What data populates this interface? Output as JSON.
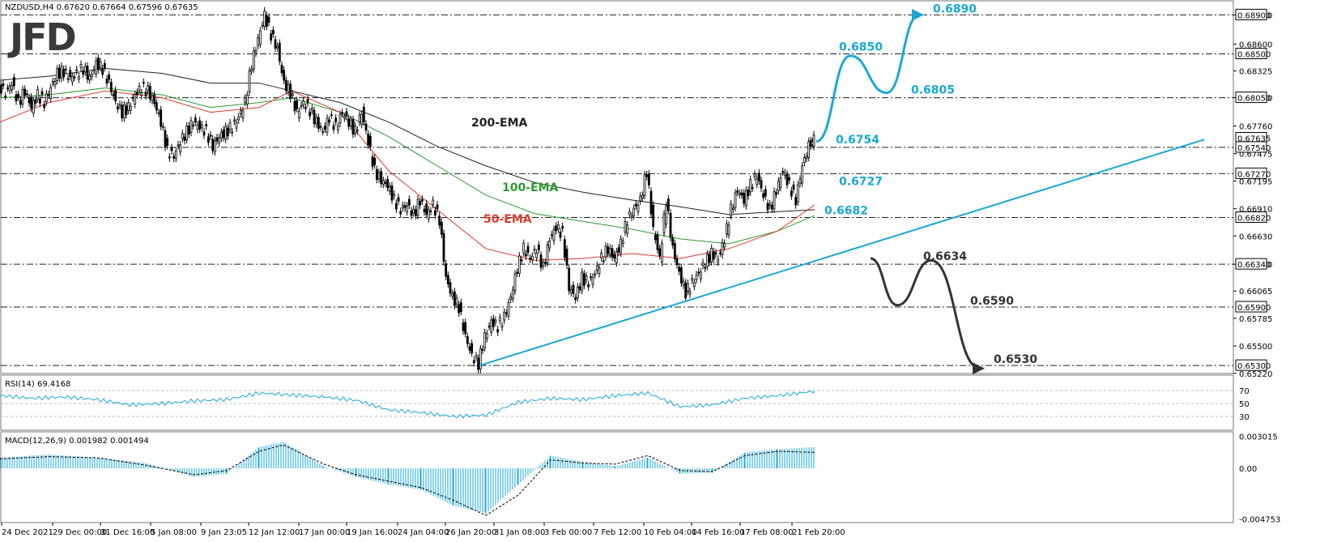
{
  "chart_data": {
    "type": "candlestick",
    "symbol_header": "NZDUSD,H4  0.67620 0.67664 0.67596 0.67635",
    "logo_text": "JFD",
    "price_axis": {
      "ylim": [
        0.6521,
        0.6897
      ],
      "ticks": [
        "0.68900",
        "0.68600",
        "0.68325",
        "0.68050",
        "0.67760",
        "0.67475",
        "0.67195",
        "0.66910",
        "0.66630",
        "0.66340",
        "0.66065",
        "0.65785",
        "0.65500",
        "0.65220"
      ],
      "highlight_ticks": [
        "0.68900",
        "0.68500",
        "0.68050",
        "0.67635",
        "0.67540",
        "0.67270",
        "0.66820",
        "0.66340",
        "0.65900",
        "0.65300"
      ]
    },
    "x_ticks": [
      "24 Dec 2021",
      "29 Dec 00:00",
      "31 Dec 16:00",
      "5 Jan 08:00",
      "9 Jan 23:05",
      "12 Jan 12:00",
      "17 Jan 00:00",
      "19 Jan 16:00",
      "24 Jan 04:00",
      "26 Jan 20:00",
      "31 Jan 08:00",
      "3 Feb 00:00",
      "7 Feb 12:00",
      "10 Feb 04:00",
      "14 Feb 16:00",
      "17 Feb 08:00",
      "21 Feb 20:00"
    ],
    "levels": [
      {
        "value": 0.689,
        "label": "0.6890"
      },
      {
        "value": 0.685,
        "label": "0.6850"
      },
      {
        "value": 0.6805,
        "label": "0.6805"
      },
      {
        "value": 0.6754,
        "label": "0.6754"
      },
      {
        "value": 0.6727,
        "label": "0.6727"
      },
      {
        "value": 0.6682,
        "label": "0.6682"
      },
      {
        "value": 0.6634,
        "label": "0.6634"
      },
      {
        "value": 0.659,
        "label": "0.6590"
      },
      {
        "value": 0.653,
        "label": "0.6530"
      }
    ],
    "ema_labels": {
      "ema200": "200-EMA",
      "ema100": "100-EMA",
      "ema50": "50-EMA"
    },
    "price_path": [
      [
        0,
        0.6818
      ],
      [
        8,
        0.681
      ],
      [
        16,
        0.682
      ],
      [
        24,
        0.68
      ],
      [
        32,
        0.6812
      ],
      [
        40,
        0.6795
      ],
      [
        48,
        0.6808
      ],
      [
        56,
        0.68
      ],
      [
        64,
        0.6815
      ],
      [
        72,
        0.683
      ],
      [
        80,
        0.6832
      ],
      [
        88,
        0.6825
      ],
      [
        96,
        0.683
      ],
      [
        104,
        0.6835
      ],
      [
        112,
        0.6825
      ],
      [
        120,
        0.684
      ],
      [
        128,
        0.6835
      ],
      [
        136,
        0.682
      ],
      [
        144,
        0.68
      ],
      [
        152,
        0.679
      ],
      [
        160,
        0.6795
      ],
      [
        168,
        0.6808
      ],
      [
        176,
        0.6815
      ],
      [
        184,
        0.6812
      ],
      [
        192,
        0.68
      ],
      [
        200,
        0.678
      ],
      [
        208,
        0.675
      ],
      [
        216,
        0.6745
      ],
      [
        224,
        0.676
      ],
      [
        232,
        0.677
      ],
      [
        240,
        0.678
      ],
      [
        248,
        0.6775
      ],
      [
        256,
        0.677
      ],
      [
        264,
        0.6755
      ],
      [
        272,
        0.6765
      ],
      [
        280,
        0.677
      ],
      [
        288,
        0.6775
      ],
      [
        296,
        0.6785
      ],
      [
        304,
        0.68
      ],
      [
        312,
        0.684
      ],
      [
        320,
        0.6865
      ],
      [
        328,
        0.689
      ],
      [
        336,
        0.687
      ],
      [
        344,
        0.6855
      ],
      [
        352,
        0.682
      ],
      [
        360,
        0.681
      ],
      [
        368,
        0.679
      ],
      [
        376,
        0.68
      ],
      [
        384,
        0.6792
      ],
      [
        392,
        0.678
      ],
      [
        400,
        0.677
      ],
      [
        408,
        0.6785
      ],
      [
        416,
        0.6775
      ],
      [
        424,
        0.679
      ],
      [
        432,
        0.678
      ],
      [
        440,
        0.677
      ],
      [
        448,
        0.679
      ],
      [
        456,
        0.676
      ],
      [
        464,
        0.673
      ],
      [
        472,
        0.672
      ],
      [
        480,
        0.6715
      ],
      [
        488,
        0.67
      ],
      [
        496,
        0.669
      ],
      [
        504,
        0.6695
      ],
      [
        512,
        0.6685
      ],
      [
        520,
        0.67
      ],
      [
        528,
        0.6685
      ],
      [
        536,
        0.6695
      ],
      [
        544,
        0.668
      ],
      [
        552,
        0.662
      ],
      [
        560,
        0.66
      ],
      [
        568,
        0.659
      ],
      [
        576,
        0.656
      ],
      [
        584,
        0.654
      ],
      [
        592,
        0.6532
      ],
      [
        600,
        0.656
      ],
      [
        608,
        0.6575
      ],
      [
        616,
        0.657
      ],
      [
        624,
        0.658
      ],
      [
        632,
        0.66
      ],
      [
        640,
        0.663
      ],
      [
        648,
        0.665
      ],
      [
        656,
        0.664
      ],
      [
        664,
        0.665
      ],
      [
        672,
        0.663
      ],
      [
        680,
        0.666
      ],
      [
        688,
        0.6672
      ],
      [
        696,
        0.6665
      ],
      [
        704,
        0.661
      ],
      [
        712,
        0.66
      ],
      [
        720,
        0.662
      ],
      [
        728,
        0.6615
      ],
      [
        736,
        0.6625
      ],
      [
        744,
        0.664
      ],
      [
        752,
        0.665
      ],
      [
        760,
        0.664
      ],
      [
        768,
        0.6655
      ],
      [
        776,
        0.668
      ],
      [
        784,
        0.669
      ],
      [
        792,
        0.67
      ],
      [
        800,
        0.673
      ],
      [
        808,
        0.667
      ],
      [
        816,
        0.664
      ],
      [
        824,
        0.67
      ],
      [
        832,
        0.665
      ],
      [
        840,
        0.6625
      ],
      [
        848,
        0.6605
      ],
      [
        856,
        0.6615
      ],
      [
        864,
        0.6625
      ],
      [
        872,
        0.6635
      ],
      [
        880,
        0.6645
      ],
      [
        888,
        0.664
      ],
      [
        896,
        0.666
      ],
      [
        904,
        0.669
      ],
      [
        912,
        0.671
      ],
      [
        920,
        0.67
      ],
      [
        928,
        0.6715
      ],
      [
        936,
        0.6725
      ],
      [
        944,
        0.6705
      ],
      [
        952,
        0.669
      ],
      [
        960,
        0.671
      ],
      [
        968,
        0.673
      ],
      [
        976,
        0.6715
      ],
      [
        984,
        0.67
      ],
      [
        992,
        0.6735
      ],
      [
        1000,
        0.6755
      ],
      [
        1006,
        0.6763
      ]
    ],
    "ema200": [
      [
        0,
        0.6823
      ],
      [
        60,
        0.6827
      ],
      [
        130,
        0.6835
      ],
      [
        200,
        0.683
      ],
      [
        260,
        0.682
      ],
      [
        320,
        0.682
      ],
      [
        360,
        0.6812
      ],
      [
        420,
        0.68
      ],
      [
        480,
        0.678
      ],
      [
        540,
        0.6755
      ],
      [
        600,
        0.6735
      ],
      [
        660,
        0.6718
      ],
      [
        720,
        0.6708
      ],
      [
        780,
        0.67
      ],
      [
        840,
        0.6693
      ],
      [
        900,
        0.6685
      ],
      [
        960,
        0.6688
      ],
      [
        1006,
        0.669
      ]
    ],
    "ema100": [
      [
        0,
        0.6805
      ],
      [
        60,
        0.6808
      ],
      [
        130,
        0.6815
      ],
      [
        200,
        0.6808
      ],
      [
        260,
        0.6795
      ],
      [
        320,
        0.68
      ],
      [
        360,
        0.6805
      ],
      [
        420,
        0.679
      ],
      [
        480,
        0.6765
      ],
      [
        540,
        0.6735
      ],
      [
        600,
        0.6705
      ],
      [
        660,
        0.6686
      ],
      [
        720,
        0.6678
      ],
      [
        780,
        0.667
      ],
      [
        840,
        0.666
      ],
      [
        900,
        0.6655
      ],
      [
        960,
        0.6668
      ],
      [
        1006,
        0.6684
      ]
    ],
    "ema50": [
      [
        0,
        0.678
      ],
      [
        60,
        0.68
      ],
      [
        130,
        0.6812
      ],
      [
        200,
        0.6805
      ],
      [
        260,
        0.679
      ],
      [
        320,
        0.6795
      ],
      [
        360,
        0.6812
      ],
      [
        420,
        0.679
      ],
      [
        480,
        0.673
      ],
      [
        540,
        0.669
      ],
      [
        600,
        0.665
      ],
      [
        660,
        0.6638
      ],
      [
        720,
        0.664
      ],
      [
        780,
        0.6645
      ],
      [
        840,
        0.664
      ],
      [
        900,
        0.665
      ],
      [
        960,
        0.6668
      ],
      [
        1006,
        0.6695
      ]
    ],
    "trendline": [
      [
        592,
        0.653
      ],
      [
        1487,
        0.6762
      ]
    ],
    "bullish_path": [
      [
        1008,
        0.676
      ],
      [
        1050,
        0.6848
      ],
      [
        1095,
        0.681
      ],
      [
        1135,
        0.689
      ]
    ],
    "bearish_path": [
      [
        1075,
        0.664
      ],
      [
        1108,
        0.6592
      ],
      [
        1150,
        0.6638
      ],
      [
        1210,
        0.6527
      ]
    ],
    "rsi": {
      "title": "RSI(14) 69.4168",
      "ticks": [
        "70",
        "50",
        "30"
      ],
      "values": [
        [
          0,
          62
        ],
        [
          40,
          58
        ],
        [
          80,
          60
        ],
        [
          120,
          56
        ],
        [
          160,
          48
        ],
        [
          200,
          50
        ],
        [
          240,
          54
        ],
        [
          280,
          56
        ],
        [
          320,
          66
        ],
        [
          350,
          64
        ],
        [
          400,
          60
        ],
        [
          440,
          55
        ],
        [
          480,
          40
        ],
        [
          520,
          36
        ],
        [
          560,
          30
        ],
        [
          600,
          32
        ],
        [
          640,
          52
        ],
        [
          680,
          58
        ],
        [
          720,
          56
        ],
        [
          760,
          62
        ],
        [
          800,
          66
        ],
        [
          840,
          45
        ],
        [
          880,
          48
        ],
        [
          920,
          58
        ],
        [
          960,
          62
        ],
        [
          1006,
          69
        ]
      ]
    },
    "macd": {
      "title": "MACD(12,26,9) 0.001982 0.001494",
      "ticks": [
        "0.003015",
        "0.00",
        "-0.004753"
      ],
      "hist": [
        [
          0,
          0.001
        ],
        [
          60,
          0.0013
        ],
        [
          120,
          0.001
        ],
        [
          180,
          0.0005
        ],
        [
          240,
          -0.0008
        ],
        [
          280,
          -0.0005
        ],
        [
          320,
          0.002
        ],
        [
          350,
          0.0025
        ],
        [
          400,
          0.0002
        ],
        [
          440,
          -0.0008
        ],
        [
          480,
          -0.0015
        ],
        [
          520,
          -0.002
        ],
        [
          560,
          -0.0035
        ],
        [
          600,
          -0.0042
        ],
        [
          640,
          -0.0015
        ],
        [
          680,
          0.0012
        ],
        [
          720,
          0.0006
        ],
        [
          760,
          0.0002
        ],
        [
          800,
          0.001
        ],
        [
          840,
          -0.0005
        ],
        [
          880,
          -0.0004
        ],
        [
          920,
          0.0015
        ],
        [
          960,
          0.0018
        ],
        [
          1006,
          0.002
        ]
      ],
      "signal": [
        [
          0,
          0.0009
        ],
        [
          60,
          0.0011
        ],
        [
          120,
          0.001
        ],
        [
          180,
          0.0003
        ],
        [
          240,
          -0.0006
        ],
        [
          280,
          -0.0002
        ],
        [
          320,
          0.0016
        ],
        [
          350,
          0.0022
        ],
        [
          400,
          0.0004
        ],
        [
          440,
          -0.0006
        ],
        [
          480,
          -0.0012
        ],
        [
          520,
          -0.0018
        ],
        [
          560,
          -0.003
        ],
        [
          600,
          -0.0044
        ],
        [
          640,
          -0.0025
        ],
        [
          680,
          0.0008
        ],
        [
          720,
          0.0005
        ],
        [
          760,
          0.0004
        ],
        [
          800,
          0.0012
        ],
        [
          840,
          -0.0002
        ],
        [
          880,
          -0.0003
        ],
        [
          920,
          0.0012
        ],
        [
          960,
          0.0016
        ],
        [
          1006,
          0.0015
        ]
      ]
    },
    "colors": {
      "bg": "#ffffff",
      "candle": "#000000",
      "ema200": "#222222",
      "ema100": "#2e9a2e",
      "ema50": "#e23a2a",
      "accent": "#1aa7d8",
      "dark": "#333333",
      "rsi": "#1aa7d8",
      "macd": "#1aa7d8"
    }
  }
}
